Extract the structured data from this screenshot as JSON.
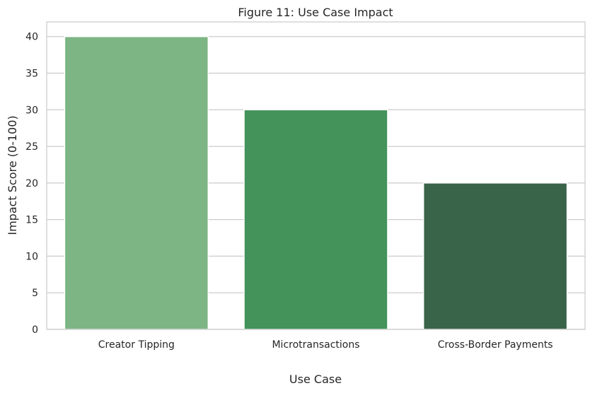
{
  "chart_data": {
    "type": "bar",
    "title": "Figure 11: Use Case Impact",
    "xlabel": "Use Case",
    "ylabel": "Impact Score (0-100)",
    "categories": [
      "Creator Tipping",
      "Microtransactions",
      "Cross-Border Payments"
    ],
    "values": [
      40,
      30,
      20
    ],
    "colors": [
      "#7db585",
      "#43935a",
      "#3a644a"
    ],
    "ylim": [
      0,
      42
    ],
    "yticks": [
      0,
      5,
      10,
      15,
      20,
      25,
      30,
      35,
      40
    ],
    "grid": "horizontal",
    "legend": "none"
  },
  "style": {
    "grid_color": "#cccccc",
    "spine_color": "#cccccc",
    "text_color": "#262626",
    "background": "#ffffff"
  }
}
